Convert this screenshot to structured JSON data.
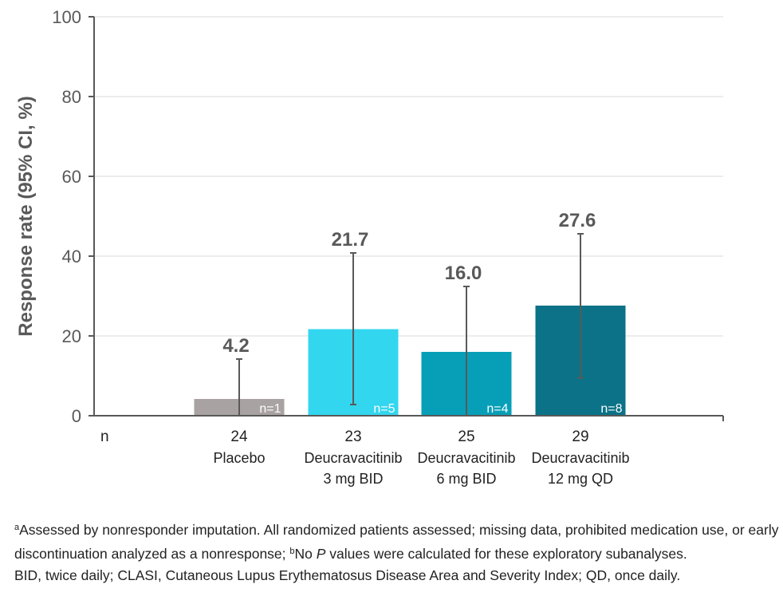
{
  "chart_data": {
    "type": "bar",
    "ylabel": "Response rate (95% CI, %)",
    "ylim": [
      0,
      100
    ],
    "yticks": [
      0,
      20,
      40,
      60,
      80,
      100
    ],
    "grid": true,
    "n_row_label": "n",
    "categories": [
      {
        "n": "24",
        "line1": "Placebo",
        "line2": ""
      },
      {
        "n": "23",
        "line1": "Deucravacitinib",
        "line2": "3 mg BID"
      },
      {
        "n": "25",
        "line1": "Deucravacitinib",
        "line2": "6 mg BID"
      },
      {
        "n": "29",
        "line1": "Deucravacitinib",
        "line2": "12 mg QD"
      }
    ],
    "values": [
      4.2,
      21.7,
      16.0,
      27.6
    ],
    "value_labels": [
      "4.2",
      "21.7",
      "16.0",
      "27.6"
    ],
    "ci_low": [
      0,
      2.8,
      0,
      9.5
    ],
    "ci_high": [
      14.2,
      40.8,
      32.4,
      45.6
    ],
    "responders": [
      "n=1",
      "n=5",
      "n=4",
      "n=8"
    ],
    "colors": [
      "#a9a2a2",
      "#33d6ef",
      "#079fb8",
      "#0b7287"
    ]
  },
  "footnotes": {
    "a_marker": "a",
    "a_text": "Assessed by nonresponder imputation. All randomized patients assessed; missing data, prohibited medication use, or early discontinuation analyzed as a nonresponse; ",
    "b_marker": "b",
    "b_text_pre": "No ",
    "b_text_italic": "P",
    "b_text_post": " values were calculated for these exploratory subanalyses.",
    "abbreviations": "BID, twice daily; CLASI, Cutaneous Lupus Erythematosus Disease Area and Severity Index; QD, once daily."
  }
}
